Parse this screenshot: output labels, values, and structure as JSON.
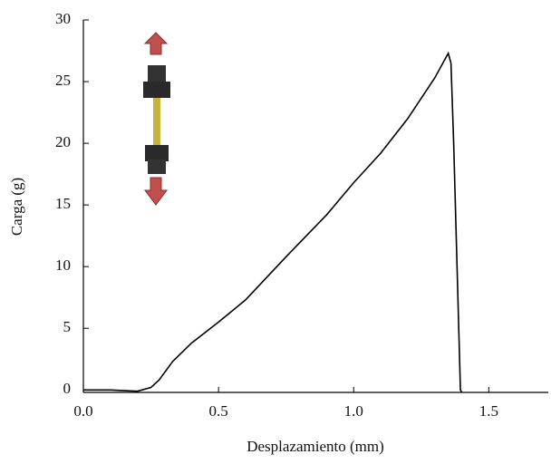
{
  "chart_data": {
    "type": "line",
    "x_label": "Desplazamiento (mm)",
    "y_label": "Carga (g)",
    "series": [
      {
        "name": "Carga",
        "color": "#000000",
        "x": [
          0,
          0.1,
          0.2,
          0.25,
          0.28,
          0.33,
          0.4,
          0.5,
          0.6,
          0.75,
          0.9,
          1.0,
          1.1,
          1.2,
          1.3,
          1.35,
          1.36,
          1.37,
          1.38,
          1.39,
          1.395,
          1.4
        ],
        "values": [
          0,
          0,
          -0.1,
          0.2,
          0.8,
          2.3,
          3.8,
          5.5,
          7.3,
          10.8,
          14.2,
          16.8,
          19.2,
          22,
          25.3,
          27.3,
          26.5,
          20,
          12,
          4,
          0,
          -0.2
        ]
      }
    ],
    "xlim": [
      0,
      1.72
    ],
    "ylim": [
      -0.2,
      30
    ],
    "xticks": [
      {
        "value": 0,
        "label": "0.0"
      },
      0.5,
      {
        "value": 1,
        "label": "1.0"
      },
      1.5
    ],
    "yticks": [
      0,
      5,
      10,
      15,
      20,
      25,
      30
    ]
  }
}
